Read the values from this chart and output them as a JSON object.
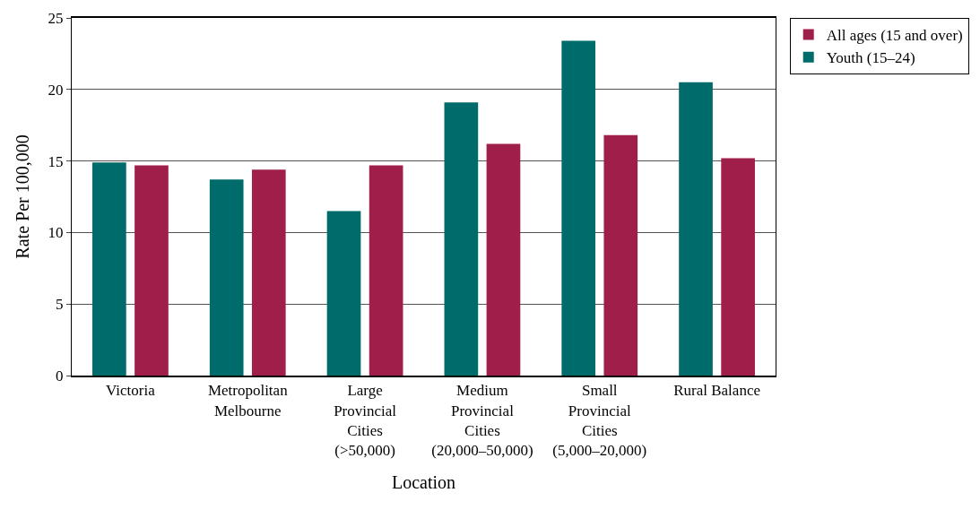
{
  "chart_data": {
    "type": "bar",
    "xlabel": "Location",
    "ylabel": "Rate Per 100,000",
    "categories": [
      "Victoria",
      "Metropolitan\nMelbourne",
      "Large\nProvincial\nCities\n(>50,000)",
      "Medium\nProvincial\nCities\n(20,000–50,000)",
      "Small\nProvincial\nCities\n(5,000–20,000)",
      "Rural Balance"
    ],
    "series": [
      {
        "name": "Youth (15–24)",
        "color": "#006b6b",
        "values": [
          14.9,
          13.7,
          11.5,
          19.1,
          23.4,
          20.5
        ]
      },
      {
        "name": "All ages (15 and over)",
        "color": "#a01f4a",
        "values": [
          14.7,
          14.4,
          14.7,
          16.2,
          16.8,
          15.2
        ]
      }
    ],
    "ylim": [
      0,
      25
    ],
    "yticks": [
      0,
      5,
      10,
      15,
      20,
      25
    ],
    "grid": "y",
    "legend": "top right"
  }
}
